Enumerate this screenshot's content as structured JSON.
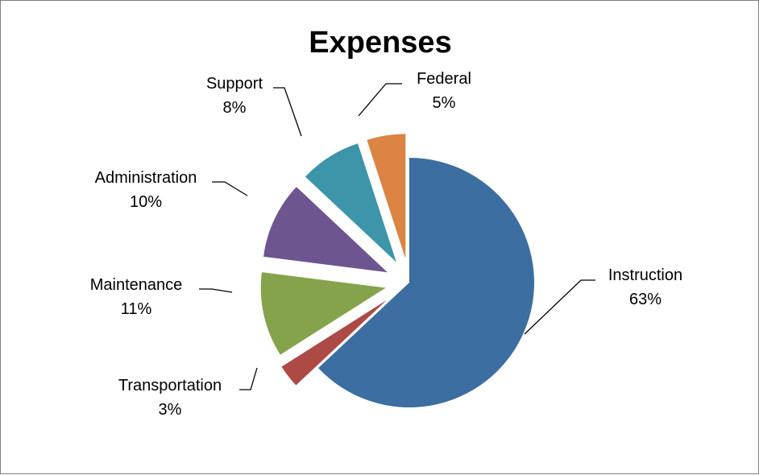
{
  "chart_data": {
    "type": "pie",
    "title": "Expenses",
    "exploded": true,
    "slices": [
      {
        "name": "Instruction",
        "value": 63,
        "label": "63%",
        "color": "#3c6ea1"
      },
      {
        "name": "Transportation",
        "value": 3,
        "label": "3%",
        "color": "#ad4a45"
      },
      {
        "name": "Maintenance",
        "value": 11,
        "label": "11%",
        "color": "#85a34b"
      },
      {
        "name": "Administration",
        "value": 10,
        "label": "10%",
        "color": "#6d5590"
      },
      {
        "name": "Support",
        "value": 8,
        "label": "8%",
        "color": "#3c95a9"
      },
      {
        "name": "Federal",
        "value": 5,
        "label": "5%",
        "color": "#db8444"
      }
    ]
  }
}
